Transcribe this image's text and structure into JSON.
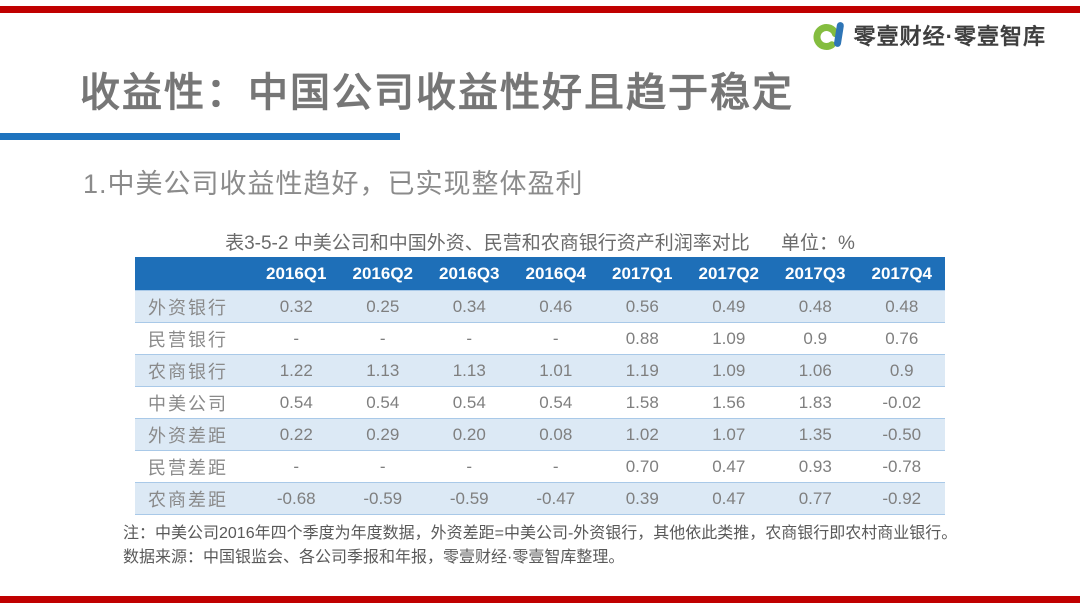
{
  "slide": {
    "accent_bar_color": "#c00000",
    "underline_color": "#1e73be",
    "logo": {
      "brand_text": "零壹财经·零壹智库",
      "mark_green": "#84bd3f",
      "mark_blue": "#2e75b6"
    },
    "title": "收益性：中国公司收益性好且趋于稳定",
    "subtitle": "1.中美公司收益性趋好，已实现整体盈利"
  },
  "table": {
    "caption": "表3-5-2 中美公司和中国外资、民营和农商银行资产利润率对比",
    "unit_label": "单位：%",
    "header_bg": "#1e6fb8",
    "stripe_bg": "#dce9f5",
    "columns": [
      "2016Q1",
      "2016Q2",
      "2016Q3",
      "2016Q4",
      "2017Q1",
      "2017Q2",
      "2017Q3",
      "2017Q4"
    ],
    "rows": [
      {
        "label": "外资银行",
        "values": [
          "0.32",
          "0.25",
          "0.34",
          "0.46",
          "0.56",
          "0.49",
          "0.48",
          "0.48"
        ]
      },
      {
        "label": "民营银行",
        "values": [
          "-",
          "-",
          "-",
          "-",
          "0.88",
          "1.09",
          "0.9",
          "0.76"
        ]
      },
      {
        "label": "农商银行",
        "values": [
          "1.22",
          "1.13",
          "1.13",
          "1.01",
          "1.19",
          "1.09",
          "1.06",
          "0.9"
        ]
      },
      {
        "label": "中美公司",
        "values": [
          "0.54",
          "0.54",
          "0.54",
          "0.54",
          "1.58",
          "1.56",
          "1.83",
          "-0.02"
        ]
      },
      {
        "label": "外资差距",
        "values": [
          "0.22",
          "0.29",
          "0.20",
          "0.08",
          "1.02",
          "1.07",
          "1.35",
          "-0.50"
        ]
      },
      {
        "label": "民营差距",
        "values": [
          "-",
          "-",
          "-",
          "-",
          "0.70",
          "0.47",
          "0.93",
          "-0.78"
        ]
      },
      {
        "label": "农商差距",
        "values": [
          "-0.68",
          "-0.59",
          "-0.59",
          "-0.47",
          "0.39",
          "0.47",
          "0.77",
          "-0.92"
        ]
      }
    ]
  },
  "notes": {
    "line1": "注：中美公司2016年四个季度为年度数据，外资差距=中美公司-外资银行，其他依此类推，农商银行即农村商业银行。",
    "line2": "数据来源：中国银监会、各公司季报和年报，零壹财经·零壹智库整理。"
  }
}
